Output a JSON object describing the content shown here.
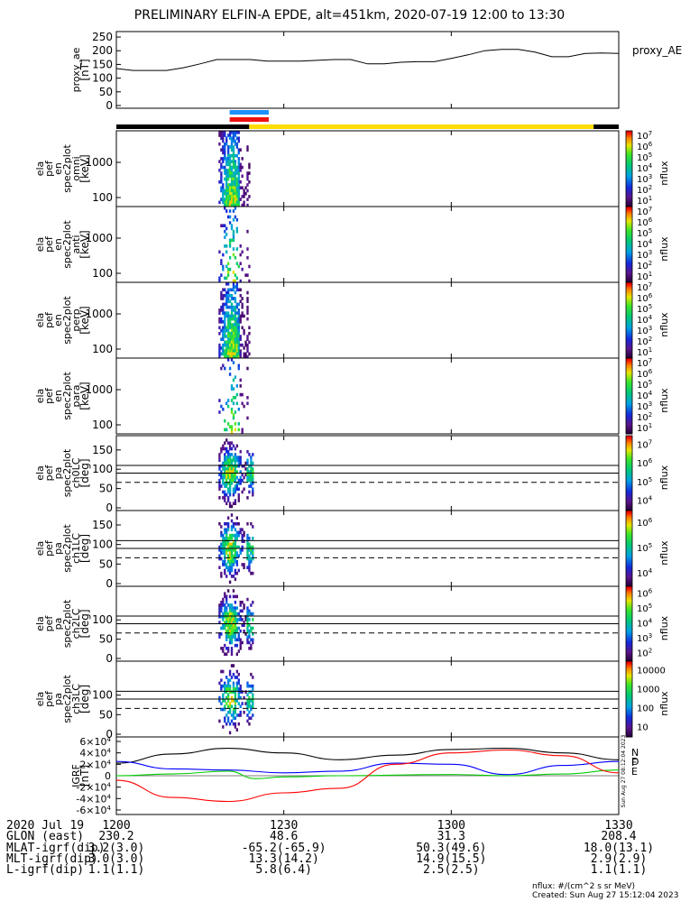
{
  "title": "PRELIMINARY ELFIN-A EPDE, alt=451km, 2020-07-19 12:00 to 13:30",
  "chart_data": [
    {
      "type": "line",
      "name": "proxy_ae",
      "ylabel": [
        "proxy_ae",
        "[nT]"
      ],
      "ylim": [
        0,
        260
      ],
      "yticks": [
        "0",
        "50",
        "100",
        "150",
        "200",
        "250"
      ],
      "legend": "proxy_AE",
      "series": [
        {
          "name": "proxy_AE",
          "x": [
            0,
            3,
            6,
            9,
            12,
            15,
            18,
            21,
            24,
            27,
            30,
            33,
            36,
            39,
            42,
            45,
            48,
            51,
            54,
            57,
            60,
            63,
            66,
            69,
            72,
            75,
            78,
            81,
            84,
            87,
            90
          ],
          "values": [
            135,
            128,
            128,
            128,
            138,
            152,
            168,
            168,
            168,
            162,
            162,
            162,
            165,
            168,
            168,
            152,
            152,
            158,
            160,
            160,
            172,
            185,
            200,
            205,
            205,
            195,
            178,
            178,
            190,
            192,
            190
          ]
        }
      ]
    },
    {
      "type": "heatmap",
      "name": "ela_pef_en_spec2plot_omni",
      "ylabel": [
        "ela",
        "pef",
        "en",
        "spec2plot",
        "omni",
        "[keV]"
      ],
      "yticks": [
        "100",
        "1000"
      ],
      "colorbar": {
        "label": "nflux",
        "ticks": [
          "10",
          "10",
          "10",
          "10",
          "10",
          "10",
          "10"
        ],
        "exponents": [
          "1",
          "2",
          "3",
          "4",
          "5",
          "6",
          "7"
        ]
      }
    },
    {
      "type": "heatmap",
      "name": "ela_pef_en_spec2plot_anti",
      "ylabel": [
        "ela",
        "pef",
        "en",
        "spec2plot",
        "anti",
        "[keV]"
      ],
      "yticks": [
        "100",
        "1000"
      ],
      "colorbar": {
        "label": "nflux",
        "ticks": [
          "10",
          "10",
          "10",
          "10",
          "10",
          "10",
          "10"
        ],
        "exponents": [
          "1",
          "2",
          "3",
          "4",
          "5",
          "6",
          "7"
        ]
      }
    },
    {
      "type": "heatmap",
      "name": "ela_pef_en_spec2plot_perp",
      "ylabel": [
        "ela",
        "pef",
        "en",
        "spec2plot",
        "perp",
        "[keV]"
      ],
      "yticks": [
        "100",
        "1000"
      ],
      "colorbar": {
        "label": "nflux",
        "ticks": [
          "10",
          "10",
          "10",
          "10",
          "10",
          "10",
          "10"
        ],
        "exponents": [
          "1",
          "2",
          "3",
          "4",
          "5",
          "6",
          "7"
        ]
      }
    },
    {
      "type": "heatmap",
      "name": "ela_pef_en_spec2plot_para",
      "ylabel": [
        "ela",
        "pef",
        "en",
        "spec2plot",
        "para",
        "[keV]"
      ],
      "yticks": [
        "100",
        "1000"
      ],
      "colorbar": {
        "label": "nflux",
        "ticks": [
          "10",
          "10",
          "10",
          "10",
          "10",
          "10",
          "10"
        ],
        "exponents": [
          "1",
          "2",
          "3",
          "4",
          "5",
          "6",
          "7"
        ]
      }
    },
    {
      "type": "heatmap",
      "name": "ela_pef_pa_spec2plot_ch0LC",
      "ylabel": [
        "ela",
        "pef",
        "pa",
        "spec2plot",
        "ch0LC",
        "[deg]"
      ],
      "yticks": [
        "0",
        "50",
        "100",
        "150"
      ],
      "colorbar": {
        "label": "nflux",
        "ticks": [
          "10",
          "10",
          "10",
          "10"
        ],
        "exponents": [
          "4",
          "5",
          "6",
          "7"
        ]
      }
    },
    {
      "type": "heatmap",
      "name": "ela_pef_pa_spec2plot_ch1LC",
      "ylabel": [
        "ela",
        "pef",
        "pa",
        "spec2plot",
        "ch1LC",
        "[deg]"
      ],
      "yticks": [
        "0",
        "50",
        "100",
        "150"
      ],
      "colorbar": {
        "label": "nflux",
        "ticks": [
          "10",
          "10",
          "10"
        ],
        "exponents": [
          "4",
          "5",
          "6"
        ]
      }
    },
    {
      "type": "heatmap",
      "name": "ela_pef_pa_spec2plot_ch2LC",
      "ylabel": [
        "ela",
        "pef",
        "pa",
        "spec2plot",
        "ch2LC",
        "[deg]"
      ],
      "yticks": [
        "0",
        "50",
        "100"
      ],
      "colorbar": {
        "label": "nflux",
        "ticks": [
          "10",
          "10",
          "10",
          "10",
          "10"
        ],
        "exponents": [
          "2",
          "3",
          "4",
          "5",
          "6"
        ]
      }
    },
    {
      "type": "heatmap",
      "name": "ela_pef_pa_spec2plot_ch3LC",
      "ylabel": [
        "ela",
        "pef",
        "pa",
        "spec2plot",
        "ch3LC",
        "[deg]"
      ],
      "yticks": [
        "0",
        "50",
        "100"
      ],
      "colorbar": {
        "label": "nflux",
        "ticks": [
          "10",
          "100",
          "1000",
          "10000"
        ]
      }
    },
    {
      "type": "line",
      "name": "IGRF",
      "ylabel": [
        "IGRF",
        "[nT]"
      ],
      "ylim": [
        -60000,
        60000
      ],
      "yticks": [
        "-6×10",
        "-4×10",
        "-2×10",
        "0",
        "2×10",
        "4×10",
        "6×10"
      ],
      "ytick_exponent": "4",
      "legend_letters": [
        "N",
        "E",
        "D",
        "F"
      ],
      "series": [
        {
          "name": "F",
          "color": "#000000",
          "x": [
            0,
            10,
            20,
            30,
            40,
            50,
            60,
            70,
            80,
            90
          ],
          "values": [
            22000,
            38000,
            48000,
            40000,
            28000,
            36000,
            46000,
            48000,
            40000,
            28000
          ]
        },
        {
          "name": "N",
          "color": "#0000ff",
          "x": [
            0,
            10,
            20,
            30,
            40,
            50,
            60,
            70,
            80,
            90
          ],
          "values": [
            25000,
            12000,
            10000,
            5000,
            8000,
            22000,
            20000,
            2000,
            18000,
            25000
          ]
        },
        {
          "name": "E",
          "color": "#00cc00",
          "x": [
            0,
            10,
            20,
            25,
            30,
            40,
            60,
            70,
            80,
            90
          ],
          "values": [
            0,
            3000,
            8000,
            -5000,
            -2000,
            0,
            2000,
            0,
            3000,
            10000
          ]
        },
        {
          "name": "D",
          "color": "#ff0000",
          "x": [
            0,
            10,
            20,
            30,
            40,
            50,
            60,
            70,
            80,
            90
          ],
          "values": [
            -8000,
            -38000,
            -45000,
            -30000,
            -22000,
            20000,
            40000,
            45000,
            35000,
            5000
          ]
        }
      ]
    }
  ],
  "ephemeris": {
    "rows": [
      {
        "label": "2020 Jul 19",
        "values": [
          "1200",
          "1230",
          "1300",
          "1330"
        ]
      },
      {
        "label": "GLON (east)",
        "values": [
          "230.2",
          "48.6",
          "31.3",
          "208.4"
        ]
      },
      {
        "label": "MLAT-igrf(dip)",
        "values": [
          "3.2(3.0)",
          "-65.2(-65.9)",
          "50.3(49.6)",
          "18.0(13.1)"
        ]
      },
      {
        "label": "MLT-igrf(dip)",
        "values": [
          "3.0(3.0)",
          "13.3(14.2)",
          "14.9(15.5)",
          "2.9(2.9)"
        ]
      },
      {
        "label": "L-igrf(dip)",
        "values": [
          "1.1(1.1)",
          "5.8(6.4)",
          "2.5(2.5)",
          "1.1(1.1)"
        ]
      }
    ]
  },
  "footer": {
    "line1": "nflux: #/(cm^2 s sr MeV)",
    "line2": "Created: Sun Aug 27 15:12:04 2023"
  },
  "side_stamp": "Sun Aug 27 08:12:04 2023",
  "colors": {
    "sunlight": "#ffdd00",
    "shadow": "#000000",
    "science_blue": "#1e90ff",
    "science_red": "#ee1111"
  }
}
